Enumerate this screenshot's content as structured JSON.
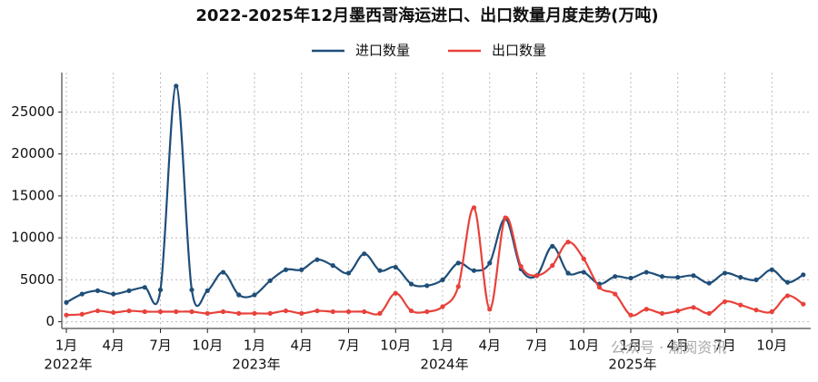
{
  "chart_data": {
    "type": "line",
    "title": "2022-2025年12月墨西哥海运进口、出口数量月度走势(万吨)",
    "categories": [
      "1月",
      null,
      null,
      "4月",
      null,
      null,
      "7月",
      null,
      null,
      "10月",
      null,
      null,
      "1月",
      null,
      null,
      "4月",
      null,
      null,
      "7月",
      null,
      null,
      "10月",
      null,
      null,
      "1月",
      null,
      null,
      "4月",
      null,
      null,
      "7月",
      null,
      null,
      "10月",
      null,
      null,
      "1月",
      null,
      null,
      "4月",
      null,
      null,
      "7月",
      null,
      null,
      "10月",
      null,
      null
    ],
    "year_labels": [
      "2022年",
      null,
      null,
      null,
      null,
      null,
      null,
      null,
      null,
      null,
      null,
      null,
      "2023年",
      null,
      null,
      null,
      null,
      null,
      null,
      null,
      null,
      null,
      null,
      null,
      "2024年",
      null,
      null,
      null,
      null,
      null,
      null,
      null,
      null,
      null,
      null,
      null,
      "2025年",
      null,
      null,
      null,
      null,
      null,
      null,
      null,
      null,
      null,
      null,
      null
    ],
    "series": [
      {
        "name": "进口数量",
        "color": "#1f4e79",
        "values": [
          2300,
          3300,
          3700,
          3300,
          3700,
          4100,
          3800,
          28100,
          3800,
          3700,
          5900,
          3200,
          3200,
          4900,
          6200,
          6200,
          7400,
          6700,
          5800,
          8100,
          6100,
          6500,
          4500,
          4300,
          5000,
          7000,
          6100,
          7000,
          12300,
          6300,
          5500,
          9000,
          5800,
          5900,
          4500,
          5400,
          5200,
          5900,
          5400,
          5300,
          5500,
          4600,
          5800,
          5300,
          5000,
          6200,
          4700,
          5600
        ]
      },
      {
        "name": "出口数量",
        "color": "#e8413b",
        "values": [
          800,
          900,
          1300,
          1100,
          1300,
          1200,
          1200,
          1200,
          1200,
          1000,
          1200,
          1000,
          1000,
          1000,
          1300,
          1000,
          1300,
          1200,
          1200,
          1200,
          1000,
          3400,
          1300,
          1200,
          1800,
          4200,
          13600,
          1500,
          12400,
          6600,
          5500,
          6700,
          9500,
          7500,
          4100,
          3300,
          800,
          1500,
          1000,
          1300,
          1700,
          1000,
          2400,
          2000,
          1400,
          1200,
          3100,
          2100
        ]
      }
    ],
    "ylim": [
      -800,
      29700
    ],
    "yticks": [
      0,
      5000,
      10000,
      15000,
      20000,
      25000
    ],
    "grid": true,
    "legend": "top",
    "watermark": "公众号 · 潮阅资讯"
  }
}
